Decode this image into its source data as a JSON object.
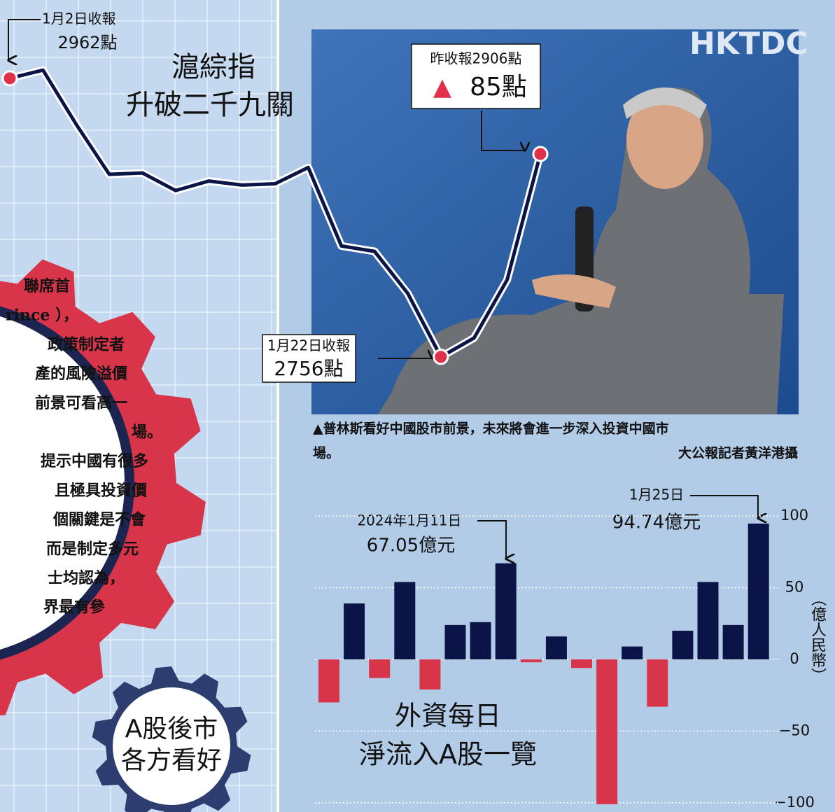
{
  "chart_data": [
    {
      "type": "line",
      "title": [
        "滬綜指",
        "升破二千九關"
      ],
      "values": [
        2962,
        2968,
        2928,
        2891,
        2892,
        2879,
        2886,
        2883,
        2884,
        2896,
        2838,
        2834,
        2803,
        2756,
        2770,
        2813,
        2906
      ],
      "ylim": [
        2700,
        3000
      ],
      "color": "#0b1446",
      "marker_color": "#e0304a",
      "annotations": [
        [
          "1月2日收報",
          "2962點"
        ],
        [
          "昨收報2906點",
          "▲",
          "85點"
        ],
        [
          "1月22日收報",
          "2756點"
        ]
      ]
    },
    {
      "type": "bar",
      "title": [
        "外資每日",
        "淨流入A股一覽"
      ],
      "values": [
        -30,
        39,
        -13,
        54,
        -21,
        24,
        26,
        67.05,
        -2,
        16,
        -6,
        -101,
        9,
        -33,
        20,
        54,
        24,
        94.74
      ],
      "color": "#0b1446",
      "negative_color": "#d8344a",
      "ylim": [
        -104,
        104
      ],
      "yticks": [
        100,
        50,
        0,
        {
          "value": -50,
          "label": "−50"
        },
        {
          "value": -100,
          "label": "−100"
        }
      ],
      "grid": true,
      "y_label": "（億人民幣）",
      "annotations": [
        [
          "2024年1月11日",
          "67.05億元"
        ],
        [
          "1月25日",
          "94.74億元"
        ]
      ]
    }
  ],
  "article": {
    "lines": [
      "聯席首",
      "rince ），",
      "政策制定者",
      "產的風險溢價",
      "前景可看高一",
      "場。",
      "提示中國有很多",
      "且極具投資價",
      "個關鍵是不會",
      "而是制定多元",
      "士均認為，",
      "界最有參"
    ]
  },
  "gear_label": [
    "A股後市",
    "各方看好"
  ],
  "caption": {
    "lines": [
      "▲普林斯看好中國股市前景，未來將會進一步深入投資中國市",
      "場。"
    ],
    "credit": "大公報記者黃洋港攝"
  }
}
